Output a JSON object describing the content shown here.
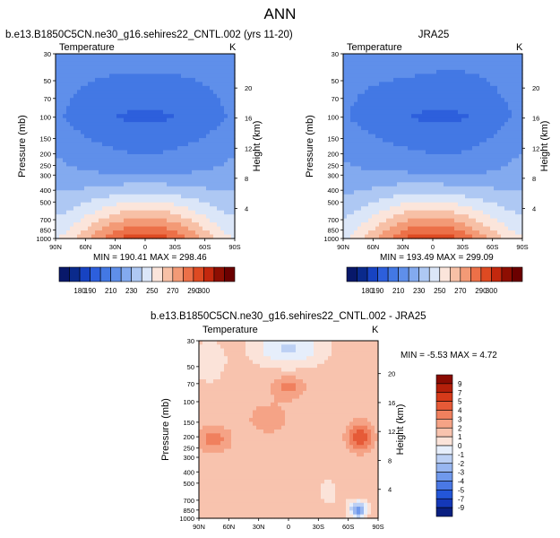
{
  "page_title": "ANN",
  "colors": {
    "abs_scale": [
      "#08306b",
      "#0d3fb0",
      "#1d5bd6",
      "#3a78e8",
      "#5b93ef",
      "#85afef",
      "#b3cdf3",
      "#dce8f8",
      "#fbe6dd",
      "#fac6b0",
      "#f7a281",
      "#f47c55",
      "#ea5028",
      "#cc2a10",
      "#9a0f04",
      "#6b0000"
    ],
    "diff_scale": [
      "#0a1f80",
      "#1438b8",
      "#2356d8",
      "#4a78e5",
      "#7099ec",
      "#98b6f0",
      "#bcd0f4",
      "#e6eefb",
      "#fbe3d9",
      "#f8c3ae",
      "#f5a386",
      "#f0805e",
      "#e65a37",
      "#d63a1a",
      "#b41f0a",
      "#8a0b02"
    ]
  },
  "panels": [
    {
      "title": "b.e13.B1850C5CN.ne30_g16.sehires22_CNTL.002 (yrs 11-20)",
      "left_label": "Temperature",
      "right_label": "K",
      "stats": "MIN = 190.41   MAX = 298.46"
    },
    {
      "title": "JRA25",
      "left_label": "Temperature",
      "right_label": "K",
      "stats": "MIN = 193.49   MAX = 299.09"
    },
    {
      "title": "b.e13.B1850C5CN.ne30_g16.sehires22_CNTL.002 - JRA25",
      "left_label": "Temperature",
      "right_label": "K",
      "stats": "MIN = -5.53   MAX =   4.72"
    }
  ],
  "axis": {
    "ylabel": "Pressure (mb)",
    "y2label": "Height (km)",
    "pressure_ticks": [
      "30",
      "50",
      "70",
      "100",
      "150",
      "200",
      "250",
      "300",
      "400",
      "500",
      "700",
      "850",
      "1000"
    ],
    "height_ticks": [
      "20",
      "16",
      "12",
      "8",
      "4"
    ],
    "lat_ticks": [
      "90N",
      "60N",
      "30N",
      "0",
      "30S",
      "60S",
      "90S"
    ]
  },
  "colorbars": {
    "abs_labels": [
      "180",
      "190",
      "210",
      "230",
      "250",
      "270",
      "290",
      "300"
    ],
    "diff_labels": [
      "9",
      "7",
      "5",
      "4",
      "3",
      "2",
      "1",
      "0",
      "-1",
      "-2",
      "-3",
      "-4",
      "-5",
      "-7",
      "-9"
    ]
  },
  "chart_data": [
    {
      "type": "heatmap",
      "title": "b.e13.B1850C5CN.ne30_g16.sehires22_CNTL.002 (yrs 11-20)",
      "variable": "Temperature",
      "units": "K",
      "x": [
        "90N",
        "60N",
        "30N",
        "0",
        "30S",
        "60S",
        "90S"
      ],
      "y": [
        30,
        50,
        70,
        100,
        150,
        200,
        250,
        300,
        400,
        500,
        700,
        850,
        1000
      ],
      "ylabel": "Pressure (mb)",
      "y2label": "Height (km)",
      "min": 190.41,
      "max": 298.46,
      "contour_levels": [
        180,
        190,
        200,
        210,
        220,
        230,
        240,
        250,
        260,
        270,
        280,
        290,
        300
      ]
    },
    {
      "type": "heatmap",
      "title": "JRA25",
      "variable": "Temperature",
      "units": "K",
      "x": [
        "90N",
        "60N",
        "30N",
        "0",
        "30S",
        "60S",
        "90S"
      ],
      "y": [
        30,
        50,
        70,
        100,
        150,
        200,
        250,
        300,
        400,
        500,
        700,
        850,
        1000
      ],
      "ylabel": "Pressure (mb)",
      "y2label": "Height (km)",
      "min": 193.49,
      "max": 299.09,
      "contour_levels": [
        180,
        190,
        200,
        210,
        220,
        230,
        240,
        250,
        260,
        270,
        280,
        290,
        300
      ]
    },
    {
      "type": "heatmap",
      "title": "b.e13.B1850C5CN.ne30_g16.sehires22_CNTL.002 - JRA25",
      "variable": "Temperature",
      "units": "K",
      "x": [
        "90N",
        "60N",
        "30N",
        "0",
        "30S",
        "60S",
        "90S"
      ],
      "y": [
        30,
        50,
        70,
        100,
        150,
        200,
        250,
        300,
        400,
        500,
        700,
        850,
        1000
      ],
      "ylabel": "Pressure (mb)",
      "y2label": "Height (km)",
      "min": -5.53,
      "max": 4.72,
      "contour_levels": [
        -9,
        -7,
        -5,
        -4,
        -3,
        -2,
        -1,
        0,
        1,
        2,
        3,
        4,
        5,
        7,
        9
      ]
    }
  ]
}
